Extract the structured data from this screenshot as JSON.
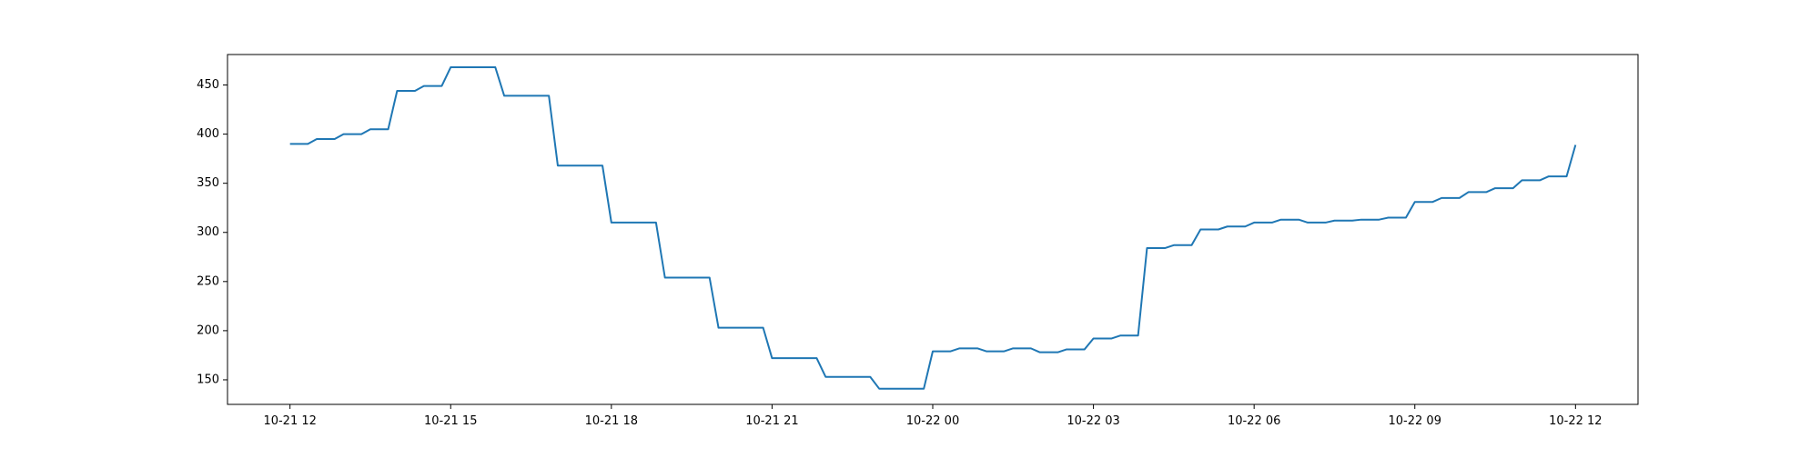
{
  "chart_data": {
    "type": "line",
    "title": "",
    "xlabel": "",
    "ylabel": "",
    "grid": false,
    "legend": "none",
    "line_color": "#1f77b4",
    "xlim": [
      "2021-10-21 10:50",
      "2021-10-22 13:10"
    ],
    "ylim": [
      125,
      481
    ],
    "x_ticks": [
      {
        "value": "2021-10-21 12:00",
        "label": "10-21 12"
      },
      {
        "value": "2021-10-21 15:00",
        "label": "10-21 15"
      },
      {
        "value": "2021-10-21 18:00",
        "label": "10-21 18"
      },
      {
        "value": "2021-10-21 21:00",
        "label": "10-21 21"
      },
      {
        "value": "2021-10-22 00:00",
        "label": "10-22 00"
      },
      {
        "value": "2021-10-22 03:00",
        "label": "10-22 03"
      },
      {
        "value": "2021-10-22 06:00",
        "label": "10-22 06"
      },
      {
        "value": "2021-10-22 09:00",
        "label": "10-22 09"
      },
      {
        "value": "2021-10-22 12:00",
        "label": "10-22 12"
      }
    ],
    "y_ticks": [
      {
        "value": 150,
        "label": "150"
      },
      {
        "value": 200,
        "label": "200"
      },
      {
        "value": 250,
        "label": "250"
      },
      {
        "value": 300,
        "label": "300"
      },
      {
        "value": 350,
        "label": "350"
      },
      {
        "value": 400,
        "label": "400"
      },
      {
        "value": 450,
        "label": "450"
      }
    ],
    "series": [
      {
        "points": [
          [
            "2021-10-21 12:00",
            390
          ],
          [
            "2021-10-21 12:20",
            390
          ],
          [
            "2021-10-21 12:30",
            395
          ],
          [
            "2021-10-21 12:50",
            395
          ],
          [
            "2021-10-21 13:00",
            400
          ],
          [
            "2021-10-21 13:20",
            400
          ],
          [
            "2021-10-21 13:30",
            405
          ],
          [
            "2021-10-21 13:50",
            405
          ],
          [
            "2021-10-21 14:00",
            444
          ],
          [
            "2021-10-21 14:20",
            444
          ],
          [
            "2021-10-21 14:30",
            449
          ],
          [
            "2021-10-21 14:50",
            449
          ],
          [
            "2021-10-21 15:00",
            468
          ],
          [
            "2021-10-21 15:50",
            468
          ],
          [
            "2021-10-21 16:00",
            439
          ],
          [
            "2021-10-21 16:50",
            439
          ],
          [
            "2021-10-21 17:00",
            368
          ],
          [
            "2021-10-21 17:50",
            368
          ],
          [
            "2021-10-21 18:00",
            310
          ],
          [
            "2021-10-21 18:50",
            310
          ],
          [
            "2021-10-21 19:00",
            254
          ],
          [
            "2021-10-21 19:50",
            254
          ],
          [
            "2021-10-21 20:00",
            203
          ],
          [
            "2021-10-21 20:50",
            203
          ],
          [
            "2021-10-21 21:00",
            172
          ],
          [
            "2021-10-21 21:50",
            172
          ],
          [
            "2021-10-21 22:00",
            153
          ],
          [
            "2021-10-21 22:50",
            153
          ],
          [
            "2021-10-21 23:00",
            141
          ],
          [
            "2021-10-21 23:50",
            141
          ],
          [
            "2021-10-22 00:00",
            179
          ],
          [
            "2021-10-22 00:20",
            179
          ],
          [
            "2021-10-22 00:30",
            182
          ],
          [
            "2021-10-22 00:50",
            182
          ],
          [
            "2021-10-22 01:00",
            179
          ],
          [
            "2021-10-22 01:20",
            179
          ],
          [
            "2021-10-22 01:30",
            182
          ],
          [
            "2021-10-22 01:50",
            182
          ],
          [
            "2021-10-22 02:00",
            178
          ],
          [
            "2021-10-22 02:20",
            178
          ],
          [
            "2021-10-22 02:30",
            181
          ],
          [
            "2021-10-22 02:50",
            181
          ],
          [
            "2021-10-22 03:00",
            192
          ],
          [
            "2021-10-22 03:20",
            192
          ],
          [
            "2021-10-22 03:30",
            195
          ],
          [
            "2021-10-22 03:50",
            195
          ],
          [
            "2021-10-22 04:00",
            284
          ],
          [
            "2021-10-22 04:20",
            284
          ],
          [
            "2021-10-22 04:30",
            287
          ],
          [
            "2021-10-22 04:50",
            287
          ],
          [
            "2021-10-22 05:00",
            303
          ],
          [
            "2021-10-22 05:20",
            303
          ],
          [
            "2021-10-22 05:30",
            306
          ],
          [
            "2021-10-22 05:50",
            306
          ],
          [
            "2021-10-22 06:00",
            310
          ],
          [
            "2021-10-22 06:20",
            310
          ],
          [
            "2021-10-22 06:30",
            313
          ],
          [
            "2021-10-22 06:50",
            313
          ],
          [
            "2021-10-22 07:00",
            310
          ],
          [
            "2021-10-22 07:20",
            310
          ],
          [
            "2021-10-22 07:30",
            312
          ],
          [
            "2021-10-22 07:50",
            312
          ],
          [
            "2021-10-22 08:00",
            313
          ],
          [
            "2021-10-22 08:20",
            313
          ],
          [
            "2021-10-22 08:30",
            315
          ],
          [
            "2021-10-22 08:50",
            315
          ],
          [
            "2021-10-22 09:00",
            331
          ],
          [
            "2021-10-22 09:20",
            331
          ],
          [
            "2021-10-22 09:30",
            335
          ],
          [
            "2021-10-22 09:50",
            335
          ],
          [
            "2021-10-22 10:00",
            341
          ],
          [
            "2021-10-22 10:20",
            341
          ],
          [
            "2021-10-22 10:30",
            345
          ],
          [
            "2021-10-22 10:50",
            345
          ],
          [
            "2021-10-22 11:00",
            353
          ],
          [
            "2021-10-22 11:20",
            353
          ],
          [
            "2021-10-22 11:30",
            357
          ],
          [
            "2021-10-22 11:50",
            357
          ],
          [
            "2021-10-22 12:00",
            389
          ]
        ]
      }
    ]
  }
}
